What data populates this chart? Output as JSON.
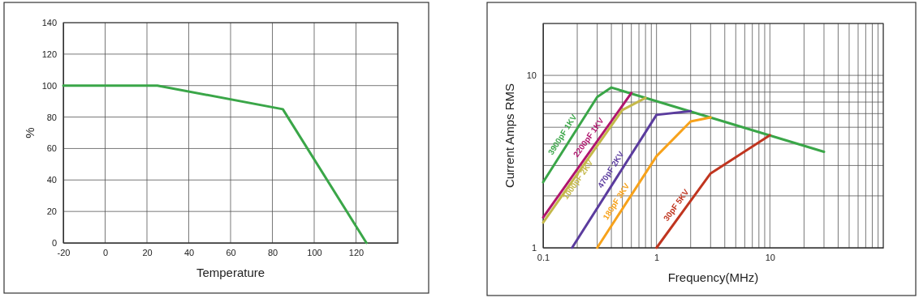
{
  "chart_data": [
    {
      "type": "line",
      "xlabel": "Temperature",
      "ylabel": "%",
      "xlim": [
        -20,
        140
      ],
      "xticks": [
        -20,
        0,
        20,
        40,
        60,
        80,
        100,
        120,
        {
          "value": 140,
          "label": null
        }
      ],
      "ylim": [
        0,
        140
      ],
      "yticks": [
        0,
        20,
        40,
        60,
        80,
        100,
        120,
        140
      ],
      "grid": true,
      "series": [
        {
          "color": "#3aa648",
          "x": [
            -20,
            25,
            85,
            125
          ],
          "values": [
            100,
            100,
            85,
            0
          ]
        }
      ]
    },
    {
      "type": "line",
      "xlabel": "Frequency(MHz)",
      "ylabel": "Current Amps RMS",
      "log": "xy",
      "xlim": [
        0.1,
        100
      ],
      "ylim": [
        1,
        20
      ],
      "grid": true,
      "xticks": [
        0.1,
        {
          "value": 0.2,
          "label": null
        },
        {
          "value": 0.3,
          "label": null
        },
        {
          "value": 0.4,
          "label": null
        },
        {
          "value": 0.5,
          "label": null
        },
        {
          "value": 0.6,
          "label": null
        },
        {
          "value": 0.7,
          "label": null
        },
        {
          "value": 0.8,
          "label": null
        },
        {
          "value": 0.9,
          "label": null
        },
        1,
        {
          "value": 2,
          "label": null
        },
        {
          "value": 3,
          "label": null
        },
        {
          "value": 4,
          "label": null
        },
        {
          "value": 5,
          "label": null
        },
        {
          "value": 6,
          "label": null
        },
        {
          "value": 7,
          "label": null
        },
        {
          "value": 8,
          "label": null
        },
        {
          "value": 9,
          "label": null
        },
        10,
        {
          "value": 20,
          "label": null
        },
        {
          "value": 30,
          "label": null
        },
        {
          "value": 40,
          "label": null
        },
        {
          "value": 50,
          "label": null
        },
        {
          "value": 60,
          "label": null
        },
        {
          "value": 70,
          "label": null
        },
        {
          "value": 80,
          "label": null
        },
        {
          "value": 90,
          "label": null
        },
        {
          "value": 100,
          "label": null
        }
      ],
      "yticks": [
        1,
        {
          "value": 2,
          "label": null
        },
        {
          "value": 3,
          "label": null
        },
        {
          "value": 4,
          "label": null
        },
        {
          "value": 5,
          "label": null
        },
        {
          "value": 6,
          "label": null
        },
        {
          "value": 7,
          "label": null
        },
        {
          "value": 8,
          "label": null
        },
        {
          "value": 9,
          "label": null
        },
        10,
        {
          "value": 20,
          "label": null
        }
      ],
      "series": [
        {
          "name": "3900pF 1KV",
          "color": "#3aa648",
          "x": [
            0.1,
            0.3,
            0.4,
            30
          ],
          "values": [
            2.4,
            7.5,
            8.5,
            3.6
          ]
        },
        {
          "name": "2200pF 1KV",
          "color": "#b0156e",
          "x": [
            0.1,
            0.6
          ],
          "values": [
            1.5,
            7.9
          ]
        },
        {
          "name": "1000pF 2KV",
          "color": "#c4b84a",
          "x": [
            0.1,
            0.5,
            0.8
          ],
          "values": [
            1.4,
            6.3,
            7.4
          ]
        },
        {
          "name": "470pF 2KV",
          "color": "#5b3c9e",
          "x": [
            0.18,
            1,
            2
          ],
          "values": [
            1,
            5.9,
            6.2
          ]
        },
        {
          "name": "180pF 3KV",
          "color": "#f7a21b",
          "x": [
            0.3,
            1,
            2,
            3
          ],
          "values": [
            1,
            3.4,
            5.4,
            5.7
          ]
        },
        {
          "name": "30pF 5KV",
          "color": "#c0351f",
          "x": [
            1,
            3,
            10
          ],
          "values": [
            1,
            2.7,
            4.5
          ]
        }
      ]
    }
  ]
}
